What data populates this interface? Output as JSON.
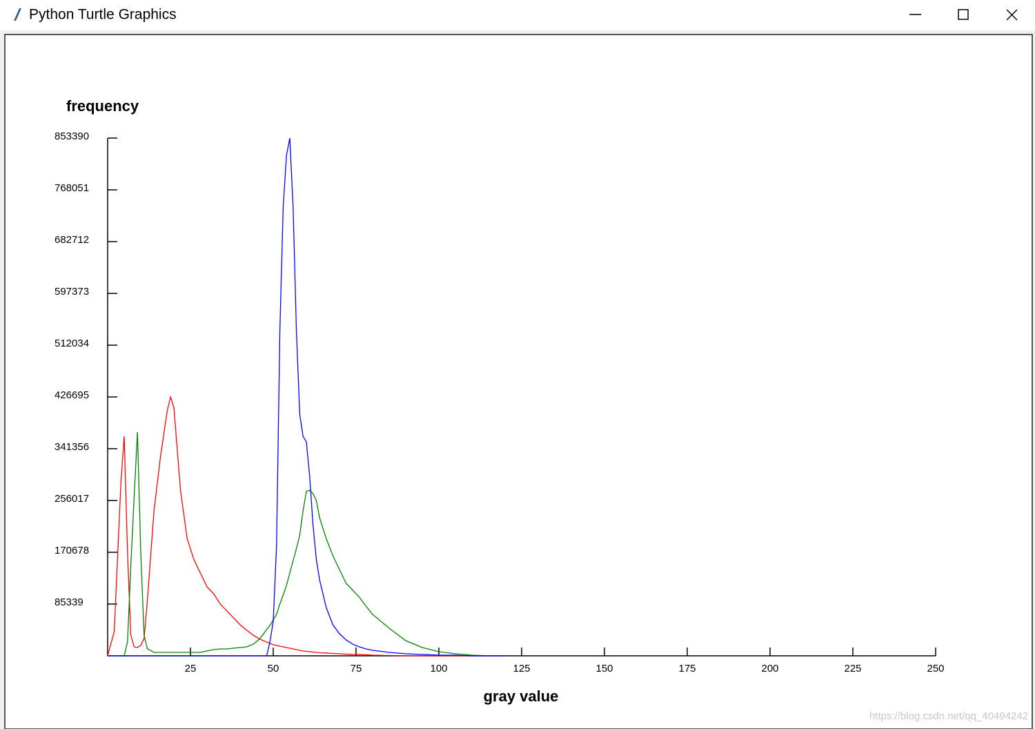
{
  "window": {
    "title": "Python Turtle Graphics"
  },
  "chart_data": {
    "type": "line",
    "xlabel": "gray value",
    "ylabel": "frequency",
    "x": [
      0,
      2,
      4,
      5,
      6,
      7,
      8,
      9,
      10,
      11,
      12,
      14,
      16,
      18,
      19,
      20,
      22,
      24,
      26,
      28,
      30,
      32,
      34,
      36,
      38,
      40,
      42,
      44,
      46,
      48,
      49,
      50,
      51,
      52,
      53,
      54,
      55,
      56,
      57,
      58,
      59,
      60,
      61,
      62,
      63,
      64,
      66,
      68,
      70,
      72,
      74,
      76,
      78,
      80,
      85,
      90,
      95,
      100,
      105,
      110,
      115,
      120
    ],
    "series": [
      {
        "color": "#ff0000",
        "values": [
          0,
          40000,
          284500,
          361800,
          170700,
          34100,
          14800,
          13700,
          17100,
          28400,
          91000,
          239000,
          330000,
          404000,
          426700,
          409600,
          273100,
          193400,
          159300,
          136500,
          113800,
          102400,
          85300,
          74000,
          62600,
          51200,
          42100,
          34100,
          27300,
          22800,
          20500,
          18200,
          17100,
          15900,
          14800,
          13700,
          12500,
          11400,
          10200,
          9100,
          8000,
          7400,
          6800,
          6300,
          5700,
          5100,
          4600,
          4000,
          3400,
          2800,
          2300,
          2300,
          1700,
          1100,
          570,
          0,
          0,
          0,
          0,
          0,
          0,
          0
        ]
      },
      {
        "color": "#008000",
        "values": [
          0,
          0,
          0,
          0,
          22800,
          147900,
          261700,
          368700,
          170700,
          34100,
          11400,
          5700,
          5700,
          5700,
          5700,
          5700,
          5700,
          5700,
          5700,
          5700,
          8000,
          10200,
          11400,
          11400,
          12500,
          13700,
          14800,
          19300,
          28400,
          43200,
          50100,
          59200,
          68300,
          85300,
          100100,
          116100,
          136500,
          157000,
          176400,
          199100,
          238900,
          270800,
          273100,
          267400,
          256000,
          227600,
          193400,
          165000,
          142200,
          119500,
          108100,
          96700,
          81900,
          68300,
          45500,
          25000,
          13700,
          6800,
          3400,
          1100,
          0,
          0
        ]
      },
      {
        "color": "#0000ff",
        "values": [
          0,
          0,
          0,
          0,
          0,
          0,
          0,
          0,
          0,
          0,
          0,
          0,
          0,
          0,
          0,
          0,
          0,
          0,
          0,
          0,
          0,
          0,
          0,
          0,
          0,
          0,
          0,
          0,
          0,
          0,
          22800,
          56900,
          182100,
          534800,
          739600,
          824900,
          853390,
          739600,
          534800,
          398200,
          361800,
          352700,
          295800,
          216200,
          159300,
          125200,
          79600,
          51200,
          36400,
          26200,
          19300,
          14800,
          11400,
          9100,
          5700,
          3400,
          2300,
          1100,
          1100,
          0,
          0,
          0
        ]
      }
    ],
    "xlim": [
      0,
      250
    ],
    "xticks": [
      25,
      50,
      75,
      100,
      125,
      150,
      175,
      200,
      225,
      250
    ],
    "ylim": [
      0,
      853390
    ],
    "yticks": [
      85339,
      170678,
      256017,
      341356,
      426695,
      512034,
      597373,
      682712,
      768051,
      853390
    ]
  },
  "watermark": "https://blog.csdn.net/qq_40494242"
}
